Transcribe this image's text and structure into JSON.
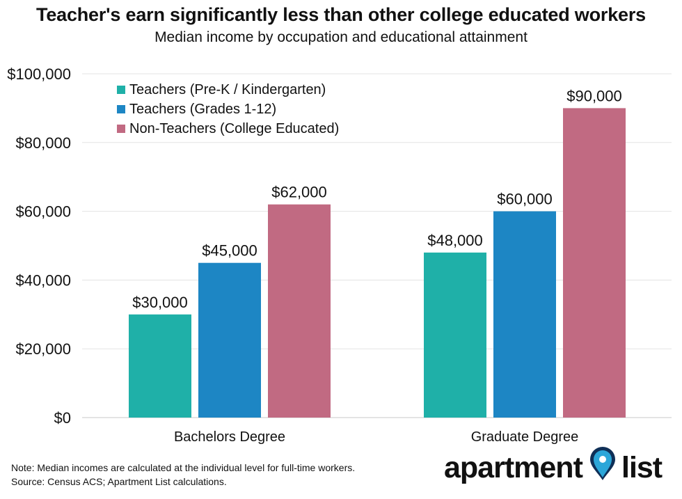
{
  "chart_data": {
    "type": "bar",
    "title": "Teacher's earn significantly less than other college educated workers",
    "subtitle": "Median income by occupation and educational attainment",
    "categories": [
      "Bachelors Degree",
      "Graduate Degree"
    ],
    "series": [
      {
        "name": "Teachers (Pre-K / Kindergarten)",
        "color": "#1fb0a8",
        "values": [
          30000,
          48000
        ],
        "labels": [
          "$30,000",
          "$48,000"
        ]
      },
      {
        "name": "Teachers (Grades 1-12)",
        "color": "#1d86c4",
        "values": [
          45000,
          60000
        ],
        "labels": [
          "$45,000",
          "$60,000"
        ]
      },
      {
        "name": "Non-Teachers (College Educated)",
        "color": "#c16a82",
        "values": [
          62000,
          90000
        ],
        "labels": [
          "$62,000",
          "$90,000"
        ]
      }
    ],
    "ylim": [
      0,
      100000
    ],
    "yticks": [
      0,
      20000,
      40000,
      60000,
      80000,
      100000
    ],
    "ytick_labels": [
      "$0",
      "$20,000",
      "$40,000",
      "$60,000",
      "$80,000",
      "$100,000"
    ],
    "grid": true,
    "legend_position": "top-left"
  },
  "footer": {
    "note": "Note: Median incomes are calculated at the individual level for full-time workers.",
    "source": "Source: Census ACS; Apartment List calculations."
  },
  "logo": {
    "word1": "apartment",
    "word2": "list",
    "pin_color": "#2ba6d9",
    "pin_dark_color": "#0f2f57"
  }
}
